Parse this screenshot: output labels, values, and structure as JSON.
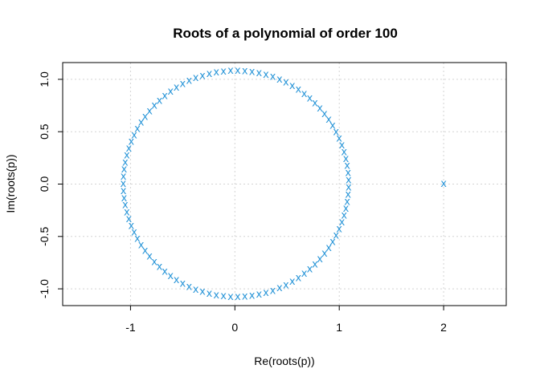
{
  "chart_data": {
    "type": "scatter",
    "title": "Roots of a polynomial of order 100",
    "xlabel": "Re(roots(p))",
    "ylabel": "Im(roots(p))",
    "xlim": [
      -1.65,
      2.6
    ],
    "ylim": [
      -1.16,
      1.16
    ],
    "x_ticks": [
      -1,
      0,
      1,
      2
    ],
    "x_tick_labels": [
      "-1",
      "0",
      "1",
      "2"
    ],
    "y_ticks": [
      -1.0,
      -0.5,
      0.0,
      0.5,
      1.0
    ],
    "y_tick_labels": [
      "-1.0",
      "-0.5",
      "0.0",
      "0.5",
      "1.0"
    ],
    "grid": true,
    "marker": "x",
    "marker_color": "#2a96d8",
    "points": {
      "ring": {
        "count": 99,
        "radius": 1.08,
        "center": [
          0.01,
          0.0
        ]
      },
      "outlier": {
        "x": 2.0,
        "y": 0.0
      }
    }
  }
}
